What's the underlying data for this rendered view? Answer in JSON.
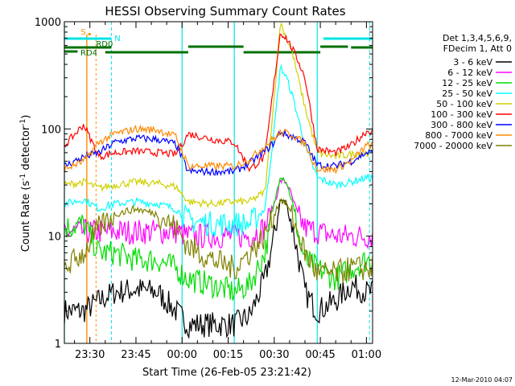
{
  "chart_data": {
    "type": "line",
    "title": "HESSI Observing Summary Count Rates",
    "xlabel": "Start Time (26-Feb-05 23:21:42)",
    "ylabel": "Count Rate (s",
    "ylabel_sup": "-1",
    "ylabel_tail": " detector",
    "ylabel_sup2": "-1",
    "ylabel_end": ")",
    "y_scale": "log",
    "ylim": [
      1,
      1000
    ],
    "y_ticks": [
      "1",
      "10",
      "100",
      "1000"
    ],
    "x_range": [
      "23:21:42",
      "01:02:00"
    ],
    "x_ticks": [
      "23:30",
      "23:45",
      "00:00",
      "00:15",
      "00:30",
      "00:45",
      "01:00"
    ],
    "legend_header": [
      "Det 1,3,4,5,6,9,",
      "FDecim 1, Att 0"
    ],
    "legend_location": "right of plot",
    "timestamp": "12-Mar-2010 04:07",
    "flags": [
      {
        "label": "S",
        "color": "#ff8c00"
      },
      {
        "label": "N",
        "color": "#00e5e5"
      },
      {
        "label": "RD0",
        "color": "#007000"
      },
      {
        "label": "RD4",
        "color": "#007000"
      }
    ],
    "series": [
      {
        "name": "3 - 6 keV",
        "color": "#000000",
        "points": [
          [
            "23:21:42",
            2
          ],
          [
            "23:28",
            2
          ],
          [
            "23:33",
            2.5
          ],
          [
            "23:38",
            3
          ],
          [
            "23:45",
            3.2
          ],
          [
            "23:52",
            3
          ],
          [
            "23:58",
            2
          ],
          [
            "00:02",
            1.5
          ],
          [
            "00:10",
            1.5
          ],
          [
            "00:17",
            1.5
          ],
          [
            "00:22",
            1.8
          ],
          [
            "00:27",
            4
          ],
          [
            "00:30",
            10
          ],
          [
            "00:32",
            22
          ],
          [
            "00:34",
            20
          ],
          [
            "00:36",
            12
          ],
          [
            "00:38",
            6
          ],
          [
            "00:40",
            3
          ],
          [
            "00:44",
            2
          ],
          [
            "00:50",
            2.5
          ],
          [
            "00:55",
            3.5
          ],
          [
            "01:00",
            3
          ]
        ]
      },
      {
        "name": "6 - 12 keV",
        "color": "#ff00ff",
        "points": [
          [
            "23:21:42",
            11
          ],
          [
            "23:28",
            11
          ],
          [
            "23:33",
            11
          ],
          [
            "23:38",
            11
          ],
          [
            "23:45",
            11
          ],
          [
            "23:52",
            11
          ],
          [
            "23:58",
            11
          ],
          [
            "00:02",
            10
          ],
          [
            "00:10",
            10
          ],
          [
            "00:17",
            10
          ],
          [
            "00:22",
            10
          ],
          [
            "00:27",
            12
          ],
          [
            "00:30",
            20
          ],
          [
            "00:32",
            33
          ],
          [
            "00:34",
            32
          ],
          [
            "00:36",
            22
          ],
          [
            "00:38",
            15
          ],
          [
            "00:40",
            12
          ],
          [
            "00:44",
            11
          ],
          [
            "00:50",
            10
          ],
          [
            "00:55",
            10
          ],
          [
            "01:00",
            10
          ]
        ]
      },
      {
        "name": "12 - 25 keV",
        "color": "#00dd00",
        "points": [
          [
            "23:21:42",
            12
          ],
          [
            "23:28",
            13
          ],
          [
            "23:33",
            7
          ],
          [
            "23:38",
            7
          ],
          [
            "23:45",
            6
          ],
          [
            "23:52",
            6
          ],
          [
            "23:58",
            5
          ],
          [
            "00:02",
            4
          ],
          [
            "00:10",
            3.5
          ],
          [
            "00:17",
            3
          ],
          [
            "00:22",
            3.5
          ],
          [
            "00:27",
            7
          ],
          [
            "00:30",
            20
          ],
          [
            "00:32",
            38
          ],
          [
            "00:34",
            32
          ],
          [
            "00:36",
            20
          ],
          [
            "00:38",
            10
          ],
          [
            "00:40",
            6
          ],
          [
            "00:44",
            5
          ],
          [
            "00:50",
            4
          ],
          [
            "00:55",
            5
          ],
          [
            "01:00",
            6
          ]
        ]
      },
      {
        "name": "25 - 50 keV",
        "color": "#00ffff",
        "points": [
          [
            "23:21:42",
            20
          ],
          [
            "23:28",
            22
          ],
          [
            "23:33",
            18
          ],
          [
            "23:38",
            20
          ],
          [
            "23:45",
            21
          ],
          [
            "23:52",
            20
          ],
          [
            "23:58",
            18
          ],
          [
            "00:02",
            14
          ],
          [
            "00:10",
            13
          ],
          [
            "00:17",
            13
          ],
          [
            "00:22",
            13
          ],
          [
            "00:27",
            18
          ],
          [
            "00:30",
            100
          ],
          [
            "00:32",
            380
          ],
          [
            "00:34",
            300
          ],
          [
            "00:36",
            200
          ],
          [
            "00:38",
            120
          ],
          [
            "00:40",
            70
          ],
          [
            "00:44",
            35
          ],
          [
            "00:50",
            30
          ],
          [
            "00:55",
            32
          ],
          [
            "01:00",
            35
          ]
        ]
      },
      {
        "name": "50 - 100 keV",
        "color": "#d0d000",
        "points": [
          [
            "23:21:42",
            30
          ],
          [
            "23:28",
            32
          ],
          [
            "23:33",
            28
          ],
          [
            "23:38",
            30
          ],
          [
            "23:45",
            32
          ],
          [
            "23:52",
            31
          ],
          [
            "23:58",
            29
          ],
          [
            "00:02",
            21
          ],
          [
            "00:10",
            20
          ],
          [
            "00:17",
            21
          ],
          [
            "00:22",
            21
          ],
          [
            "00:27",
            26
          ],
          [
            "00:30",
            200
          ],
          [
            "00:32",
            1000
          ],
          [
            "00:34",
            700
          ],
          [
            "00:36",
            500
          ],
          [
            "00:38",
            280
          ],
          [
            "00:40",
            160
          ],
          [
            "00:44",
            60
          ],
          [
            "00:50",
            55
          ],
          [
            "00:55",
            58
          ],
          [
            "01:00",
            60
          ]
        ]
      },
      {
        "name": "100 - 300 keV",
        "color": "#ff0000",
        "points": [
          [
            "23:21:42",
            70
          ],
          [
            "23:28",
            110
          ],
          [
            "23:33",
            55
          ],
          [
            "23:38",
            60
          ],
          [
            "23:45",
            62
          ],
          [
            "23:52",
            60
          ],
          [
            "23:58",
            58
          ],
          [
            "00:02",
            90
          ],
          [
            "00:10",
            80
          ],
          [
            "00:17",
            75
          ],
          [
            "00:22",
            42
          ],
          [
            "00:27",
            55
          ],
          [
            "00:30",
            280
          ],
          [
            "00:32",
            800
          ],
          [
            "00:34",
            700
          ],
          [
            "00:36",
            550
          ],
          [
            "00:38",
            420
          ],
          [
            "00:40",
            300
          ],
          [
            "00:44",
            65
          ],
          [
            "00:50",
            60
          ],
          [
            "00:55",
            70
          ],
          [
            "01:00",
            95
          ]
        ]
      },
      {
        "name": "300 - 800 keV",
        "color": "#0000ff",
        "points": [
          [
            "23:21:42",
            45
          ],
          [
            "23:28",
            55
          ],
          [
            "23:33",
            60
          ],
          [
            "23:38",
            75
          ],
          [
            "23:45",
            82
          ],
          [
            "23:52",
            80
          ],
          [
            "23:58",
            72
          ],
          [
            "00:02",
            40
          ],
          [
            "00:10",
            40
          ],
          [
            "00:17",
            40
          ],
          [
            "00:22",
            48
          ],
          [
            "00:27",
            62
          ],
          [
            "00:30",
            75
          ],
          [
            "00:32",
            95
          ],
          [
            "00:34",
            88
          ],
          [
            "00:36",
            85
          ],
          [
            "00:38",
            80
          ],
          [
            "00:40",
            75
          ],
          [
            "00:44",
            46
          ],
          [
            "00:50",
            45
          ],
          [
            "00:55",
            50
          ],
          [
            "01:00",
            60
          ]
        ]
      },
      {
        "name": "800 - 7000 keV",
        "color": "#ff8800",
        "points": [
          [
            "23:21:42",
            42
          ],
          [
            "23:28",
            50
          ],
          [
            "23:33",
            75
          ],
          [
            "23:38",
            90
          ],
          [
            "23:45",
            100
          ],
          [
            "23:52",
            98
          ],
          [
            "23:58",
            85
          ],
          [
            "00:02",
            45
          ],
          [
            "00:10",
            45
          ],
          [
            "00:17",
            45
          ],
          [
            "00:22",
            52
          ],
          [
            "00:27",
            70
          ],
          [
            "00:30",
            82
          ],
          [
            "00:32",
            92
          ],
          [
            "00:34",
            92
          ],
          [
            "00:36",
            88
          ],
          [
            "00:38",
            80
          ],
          [
            "00:40",
            72
          ],
          [
            "00:44",
            42
          ],
          [
            "00:50",
            42
          ],
          [
            "00:55",
            50
          ],
          [
            "01:00",
            70
          ]
        ]
      },
      {
        "name": "7000 - 20000 keV",
        "color": "#808000",
        "points": [
          [
            "23:21:42",
            5
          ],
          [
            "23:28",
            7
          ],
          [
            "23:33",
            12
          ],
          [
            "23:38",
            16
          ],
          [
            "23:45",
            18
          ],
          [
            "23:52",
            16
          ],
          [
            "23:58",
            12
          ],
          [
            "00:02",
            8
          ],
          [
            "00:10",
            6
          ],
          [
            "00:17",
            5
          ],
          [
            "00:22",
            7
          ],
          [
            "00:27",
            10
          ],
          [
            "00:30",
            16
          ],
          [
            "00:32",
            22
          ],
          [
            "00:34",
            20
          ],
          [
            "00:36",
            15
          ],
          [
            "00:38",
            10
          ],
          [
            "00:40",
            7
          ],
          [
            "00:44",
            4.5
          ],
          [
            "00:50",
            4.5
          ],
          [
            "00:55",
            5
          ],
          [
            "01:00",
            5
          ]
        ]
      }
    ]
  }
}
